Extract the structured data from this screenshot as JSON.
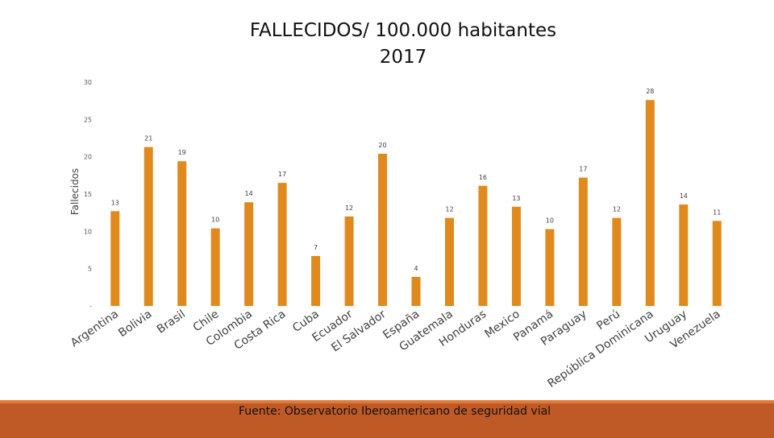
{
  "chart_data": {
    "type": "bar",
    "title": "FALLECIDOS/ 100.000 habitantes",
    "subtitle": "2017",
    "ylabel": "Fallecidos",
    "xlabel": "",
    "ylim": [
      0,
      30
    ],
    "yticks": [
      0,
      5,
      10,
      15,
      20,
      25,
      30
    ],
    "ytick_labels": [
      "-",
      "5",
      "10",
      "15",
      "20",
      "25",
      "30"
    ],
    "grid": false,
    "legend": "none",
    "bar_color": "#e08a1e",
    "categories": [
      "Argentina",
      "Bolivia",
      "Brasil",
      "Chile",
      "Colombia",
      "Costa Rica",
      "Cuba",
      "Ecuador",
      "El Salvador",
      "España",
      "Guatemala",
      "Honduras",
      "Mexico",
      "Panamá",
      "Paraguay",
      "Perú",
      "República Dominicana",
      "Uruguay",
      "Venezuela"
    ],
    "values": [
      12.7,
      21.3,
      19.4,
      10.4,
      13.9,
      16.5,
      6.7,
      12.0,
      20.4,
      3.9,
      11.8,
      16.1,
      13.3,
      10.3,
      17.2,
      11.8,
      27.6,
      13.6,
      11.4
    ],
    "data_labels": [
      "13",
      "21",
      "19",
      "10",
      "14",
      "17",
      "7",
      "12",
      "20",
      "4",
      "12",
      "16",
      "13",
      "10",
      "17",
      "12",
      "28",
      "14",
      "11"
    ]
  },
  "source": "Fuente: Observatorio Iberoamericano de seguridad vial"
}
